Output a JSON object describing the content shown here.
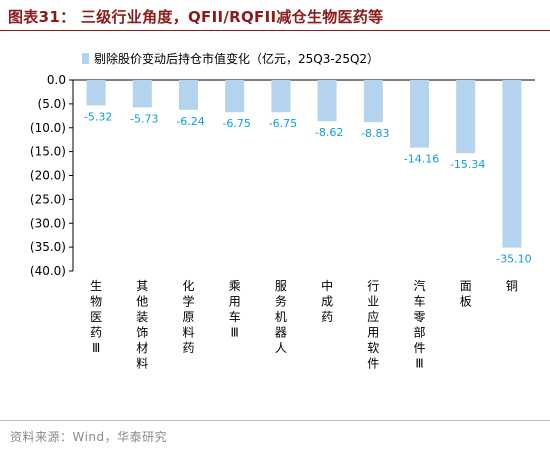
{
  "title": "图表31： 三级行业角度，QFII/RQFII减仓生物医药等",
  "source": "资料来源：Wind，华泰研究",
  "chart_data": {
    "type": "bar",
    "orientation": "vertical",
    "categories": [
      "生物医药Ⅲ",
      "其他装饰材料",
      "化学原料药",
      "乘用车Ⅲ",
      "服务机器人",
      "中成药",
      "行业应用软件",
      "汽车零部件Ⅲ",
      "面板",
      "铜"
    ],
    "series": [
      {
        "name": "剔除股价变动后持仓市值变化（亿元，25Q3-25Q2）",
        "values": [
          -5.32,
          -5.73,
          -6.24,
          -6.75,
          -6.75,
          -8.62,
          -8.83,
          -14.16,
          -15.34,
          -35.1
        ],
        "labels": [
          "-5.32",
          "-5.73",
          "-6.24",
          "-6.75",
          "-6.75",
          "-8.62",
          "-8.83",
          "-14.16",
          "-15.34",
          "-35.10"
        ],
        "color": "#b4d3ef"
      }
    ],
    "ylim": [
      -40,
      0
    ],
    "yticks": [
      0,
      -5,
      -10,
      -15,
      -20,
      -25,
      -30,
      -35,
      -40
    ],
    "ytick_labels": [
      "0.0",
      "(5.0)",
      "(10.0)",
      "(15.0)",
      "(20.0)",
      "(25.0)",
      "(30.0)",
      "(35.0)",
      "(40.0)"
    ],
    "grid": false,
    "legend": "top-left",
    "label_color": "#0b9fe0"
  }
}
